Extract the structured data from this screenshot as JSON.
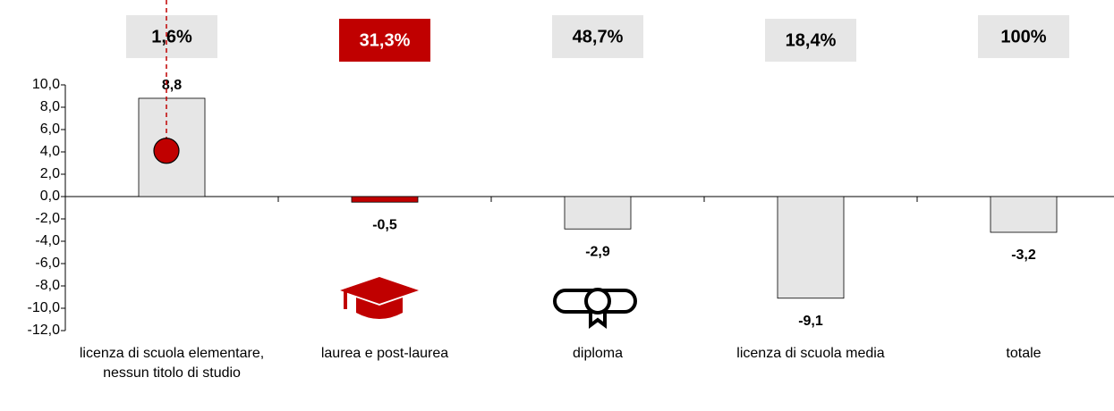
{
  "chart_data": {
    "type": "bar",
    "categories": [
      "licenza di scuola elementare, nessun titolo di studio",
      "laurea e post-laurea",
      "diploma",
      "licenza di scuola media",
      "totale"
    ],
    "values": [
      8.8,
      -0.5,
      -2.9,
      -9.1,
      -3.2
    ],
    "value_labels": [
      "8,8",
      "-0,5",
      "-2,9",
      "-9,1",
      "-3,2"
    ],
    "colors": [
      "#e6e6e6",
      "#c00000",
      "#e6e6e6",
      "#e6e6e6",
      "#e6e6e6"
    ],
    "share_values": [
      1.6,
      31.3,
      48.7,
      18.4,
      100
    ],
    "share_labels": [
      "1,6%",
      "31,3%",
      "48,7%",
      "18,4%",
      "100%"
    ],
    "share_colors": [
      "#e6e6e6",
      "#c00000",
      "#e6e6e6",
      "#e6e6e6",
      "#e6e6e6"
    ],
    "marker_values": [
      4.1,
      null,
      null,
      null,
      null
    ],
    "marker_color": "#c00000",
    "ylim": [
      -12,
      10
    ],
    "yticks": [
      {
        "value": -12,
        "label": "-12,0"
      },
      {
        "value": -10,
        "label": "-10,0"
      },
      {
        "value": -8,
        "label": "-8,0"
      },
      {
        "value": -6,
        "label": "-6,0"
      },
      {
        "value": -4,
        "label": "-4,0"
      },
      {
        "value": -2,
        "label": "-2,0"
      },
      {
        "value": 0,
        "label": "0,0"
      },
      {
        "value": 2,
        "label": "2,0"
      },
      {
        "value": 4,
        "label": "4,0"
      },
      {
        "value": 6,
        "label": "6,0"
      },
      {
        "value": 8,
        "label": "8,0"
      },
      {
        "value": 10,
        "label": "10,0"
      }
    ],
    "grid": false
  }
}
